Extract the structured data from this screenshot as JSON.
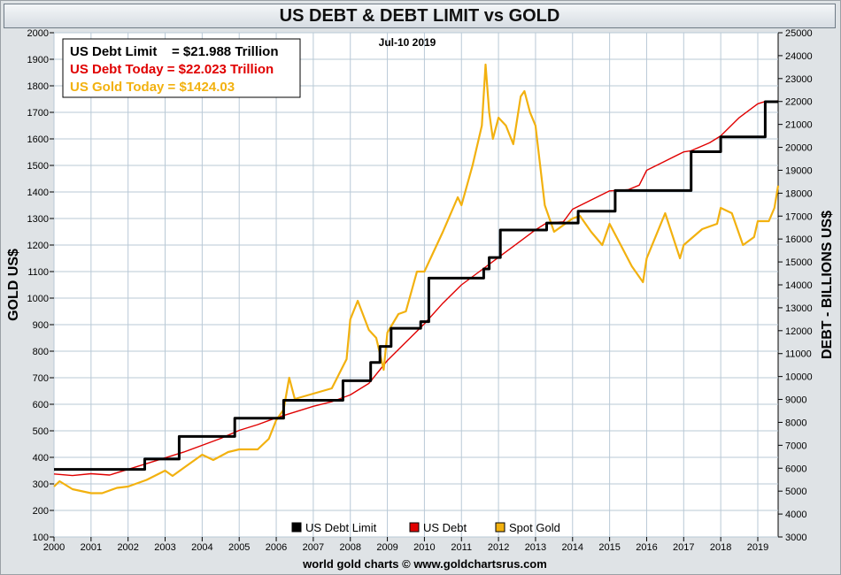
{
  "header": {
    "title": "US DEBT & DEBT LIMIT vs GOLD"
  },
  "date_label": "Jul-10  2019",
  "info_box": {
    "debt_limit": "US Debt Limit    = $21.988 Trillion",
    "debt_today": "US Debt Today = $22.023 Trillion",
    "gold_today": "US Gold Today = $1424.03"
  },
  "footer": {
    "credit": "world gold charts © www.goldchartsrus.com"
  },
  "colors": {
    "debt_limit": "#000000",
    "debt": "#e00000",
    "gold": "#f2b10f",
    "panel": "#ffffff",
    "grid": "#b9c9d6"
  },
  "chart_data": {
    "type": "line",
    "title": "US DEBT & DEBT LIMIT vs GOLD",
    "xlabel": "",
    "ylabel_left": "GOLD US$",
    "ylabel_right": "DEBT - BILLIONS US$",
    "xlim": [
      2000,
      2019.55
    ],
    "ylim_left": [
      100,
      2000
    ],
    "ylim_right": [
      3000,
      25000
    ],
    "x_ticks": [
      "2000",
      "2001",
      "2002",
      "2003",
      "2004",
      "2005",
      "2006",
      "2007",
      "2008",
      "2009",
      "2010",
      "2011",
      "2012",
      "2013",
      "2014",
      "2015",
      "2016",
      "2017",
      "2018",
      "2019"
    ],
    "y_ticks_left": [
      "100",
      "200",
      "300",
      "400",
      "500",
      "600",
      "700",
      "800",
      "900",
      "1000",
      "1100",
      "1200",
      "1300",
      "1400",
      "1500",
      "1600",
      "1700",
      "1800",
      "1900",
      "2000"
    ],
    "y_ticks_right": [
      "3000",
      "4000",
      "5000",
      "6000",
      "7000",
      "8000",
      "9000",
      "10000",
      "11000",
      "12000",
      "13000",
      "14000",
      "15000",
      "16000",
      "17000",
      "18000",
      "19000",
      "20000",
      "21000",
      "22000",
      "23000",
      "24000",
      "25000"
    ],
    "grid": true,
    "legend_position": "bottom",
    "series": [
      {
        "name": "US Debt Limit",
        "axis": "right",
        "step": true,
        "x": [
          2000.0,
          2002.45,
          2003.38,
          2004.88,
          2006.2,
          2007.8,
          2008.55,
          2008.8,
          2009.1,
          2009.9,
          2010.12,
          2011.6,
          2011.75,
          2012.05,
          2013.3,
          2014.15,
          2015.15,
          2017.2,
          2018.0,
          2019.2,
          2019.55
        ],
        "values": [
          5950,
          6400,
          7384,
          8184,
          8965,
          9815,
          10615,
          11315,
          12104,
          12394,
          14294,
          14694,
          15194,
          16394,
          16699,
          17212,
          18113,
          19808,
          20456,
          21988,
          21988
        ]
      },
      {
        "name": "US Debt",
        "axis": "right",
        "x": [
          2000.0,
          2000.5,
          2001.0,
          2001.5,
          2002.0,
          2002.5,
          2003.0,
          2003.5,
          2004.0,
          2004.5,
          2005.0,
          2005.5,
          2006.0,
          2006.5,
          2007.0,
          2007.5,
          2008.0,
          2008.5,
          2009.0,
          2009.5,
          2010.0,
          2010.5,
          2011.0,
          2011.5,
          2012.0,
          2012.5,
          2013.0,
          2013.3,
          2013.75,
          2014.0,
          2014.5,
          2015.0,
          2015.5,
          2015.8,
          2016.0,
          2016.5,
          2017.0,
          2017.2,
          2017.7,
          2018.0,
          2018.5,
          2019.0,
          2019.2,
          2019.55
        ],
        "values": [
          5750,
          5680,
          5760,
          5700,
          5950,
          6200,
          6450,
          6700,
          7000,
          7300,
          7650,
          7900,
          8200,
          8450,
          8700,
          8900,
          9200,
          9700,
          10700,
          11500,
          12300,
          13200,
          14000,
          14600,
          15200,
          15800,
          16400,
          16700,
          16750,
          17300,
          17700,
          18100,
          18150,
          18350,
          19000,
          19400,
          19800,
          19850,
          20200,
          20500,
          21300,
          21900,
          22000,
          22023
        ]
      },
      {
        "name": "Spot Gold",
        "axis": "left",
        "x": [
          2000.0,
          2000.15,
          2000.5,
          2001.0,
          2001.3,
          2001.7,
          2002.0,
          2002.5,
          2003.0,
          2003.2,
          2003.5,
          2004.0,
          2004.3,
          2004.7,
          2005.0,
          2005.5,
          2005.8,
          2006.0,
          2006.2,
          2006.35,
          2006.5,
          2007.0,
          2007.5,
          2007.9,
          2008.0,
          2008.2,
          2008.5,
          2008.7,
          2008.9,
          2009.0,
          2009.3,
          2009.5,
          2009.8,
          2010.0,
          2010.5,
          2010.9,
          2011.0,
          2011.3,
          2011.55,
          2011.65,
          2011.75,
          2011.85,
          2012.0,
          2012.2,
          2012.4,
          2012.6,
          2012.7,
          2012.85,
          2013.0,
          2013.25,
          2013.5,
          2013.8,
          2014.0,
          2014.2,
          2014.5,
          2014.8,
          2015.0,
          2015.3,
          2015.6,
          2015.9,
          2016.0,
          2016.5,
          2016.9,
          2017.0,
          2017.5,
          2017.9,
          2018.0,
          2018.3,
          2018.6,
          2018.9,
          2019.0,
          2019.3,
          2019.45,
          2019.55
        ],
        "values": [
          290,
          310,
          280,
          265,
          265,
          285,
          290,
          315,
          350,
          330,
          360,
          410,
          390,
          420,
          430,
          430,
          470,
          540,
          580,
          700,
          620,
          640,
          660,
          770,
          920,
          990,
          880,
          850,
          730,
          870,
          940,
          950,
          1100,
          1100,
          1250,
          1380,
          1350,
          1500,
          1650,
          1880,
          1700,
          1600,
          1680,
          1650,
          1580,
          1760,
          1780,
          1700,
          1650,
          1350,
          1250,
          1280,
          1300,
          1310,
          1250,
          1200,
          1280,
          1200,
          1120,
          1060,
          1150,
          1320,
          1150,
          1200,
          1260,
          1280,
          1340,
          1320,
          1200,
          1230,
          1290,
          1290,
          1340,
          1424
        ]
      }
    ]
  }
}
